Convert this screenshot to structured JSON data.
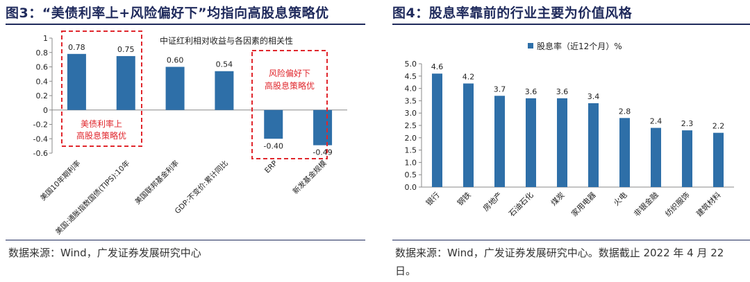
{
  "left": {
    "fig_title": "图3：“美债利率上+风险偏好下”均指向高股息策略优",
    "source": "数据来源：Wind，广发证券发展研究中心",
    "callout_a": [
      "美债利率上",
      "高股息策略优"
    ],
    "callout_b": [
      "风险偏好下",
      "高股息策略优"
    ]
  },
  "right": {
    "fig_title": "图4：股息率靠前的行业主要为价值风格",
    "source": "数据来源：Wind，广发证券发展研究中心。数据截止 2022 年 4 月 22 日。"
  },
  "chart_data": [
    {
      "type": "bar",
      "title": "中证红利相对收益与各因素的相关性",
      "categories": [
        "美国10年期利率",
        "美国:通胀指数国债(TIPS):10年",
        "美国联邦基金利率",
        "GDP:不变价:累计同比",
        "ERP",
        "新发基金规模"
      ],
      "values": [
        0.78,
        0.75,
        0.6,
        0.54,
        -0.4,
        -0.49
      ],
      "data_labels": [
        "0.78",
        "0.75",
        "0.60",
        "0.54",
        "-0.40",
        "-0.49"
      ],
      "ylim": [
        -0.6,
        1
      ],
      "yticks": [
        -0.6,
        -0.4,
        -0.2,
        0,
        0.2,
        0.4,
        0.6,
        0.8,
        1
      ],
      "ytick_labels": [
        "-0.6",
        "-0.4",
        "-0.2",
        "0",
        "0.2",
        "0.4",
        "0.6",
        "0.8",
        "1"
      ],
      "color": "#2e6fa8",
      "grid": false
    },
    {
      "type": "bar",
      "series": [
        {
          "name": "股息率（近12个月）%"
        }
      ],
      "legend": "top",
      "categories": [
        "银行",
        "钢铁",
        "房地产",
        "石油石化",
        "煤炭",
        "家用电器",
        "火电",
        "非银金融",
        "纺织服饰",
        "建筑材料"
      ],
      "values": [
        4.6,
        4.2,
        3.7,
        3.6,
        3.6,
        3.4,
        2.8,
        2.4,
        2.3,
        2.2
      ],
      "data_labels": [
        "4.6",
        "4.2",
        "3.7",
        "3.6",
        "3.6",
        "3.4",
        "2.8",
        "2.4",
        "2.3",
        "2.2"
      ],
      "ylim": [
        0,
        5
      ],
      "yticks": [
        0,
        0.5,
        1,
        1.5,
        2,
        2.5,
        3,
        3.5,
        4,
        4.5,
        5
      ],
      "ytick_labels": [
        "0.0",
        "0.5",
        "1.0",
        "1.5",
        "2.0",
        "2.5",
        "3.0",
        "3.5",
        "4.0",
        "4.5",
        "5.0"
      ],
      "color": "#2e6fa8",
      "grid": false
    }
  ]
}
